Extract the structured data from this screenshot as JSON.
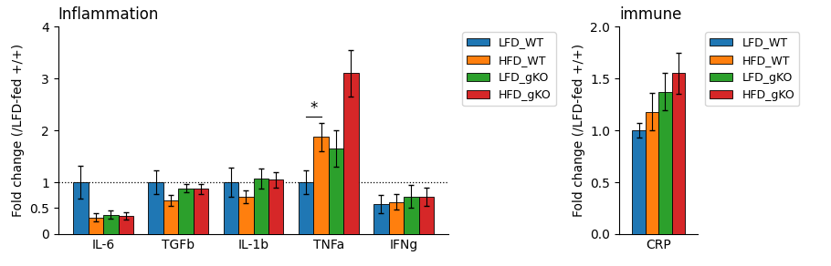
{
  "chart_data": [
    {
      "type": "bar",
      "title": "Inflammation",
      "y_label": "Fold change (/LFD-fed +/+)",
      "categories": [
        "IL-6",
        "TGFb",
        "IL-1b",
        "TNFa",
        "IFNg"
      ],
      "series": [
        {
          "name": "LFD_WT",
          "values": [
            1.0,
            1.0,
            1.0,
            1.0,
            0.58
          ],
          "errors": [
            0.32,
            0.22,
            0.28,
            0.22,
            0.18
          ]
        },
        {
          "name": "HFD_WT",
          "values": [
            0.32,
            0.65,
            0.72,
            1.87,
            0.62
          ],
          "errors": [
            0.08,
            0.1,
            0.12,
            0.28,
            0.15
          ]
        },
        {
          "name": "LFD_gKO",
          "values": [
            0.37,
            0.88,
            1.07,
            1.65,
            0.72
          ],
          "errors": [
            0.08,
            0.08,
            0.2,
            0.35,
            0.22
          ]
        },
        {
          "name": "HFD_gKO",
          "values": [
            0.35,
            0.87,
            1.05,
            3.1,
            0.72
          ],
          "errors": [
            0.07,
            0.1,
            0.15,
            0.45,
            0.18
          ]
        }
      ],
      "ylim": [
        0,
        4
      ],
      "yticks": [
        0,
        0.5,
        1,
        2,
        3,
        4
      ],
      "reference_lines": [
        {
          "y": 1.0,
          "line_style": "dotted"
        }
      ],
      "annotations": [
        {
          "text": "*",
          "category": "TNFa",
          "between": [
            "LFD_WT",
            "HFD_WT"
          ]
        }
      ],
      "legend": "upper left"
    },
    {
      "type": "bar",
      "title": "immune",
      "y_label": "Fold change (/LFD-fed +/+)",
      "categories": [
        "CRP"
      ],
      "series": [
        {
          "name": "LFD_WT",
          "values": [
            1.0
          ],
          "errors": [
            0.07
          ]
        },
        {
          "name": "HFD_WT",
          "values": [
            1.18
          ],
          "errors": [
            0.18
          ]
        },
        {
          "name": "LFD_gKO",
          "values": [
            1.37
          ],
          "errors": [
            0.18
          ]
        },
        {
          "name": "HFD_gKO",
          "values": [
            1.55
          ],
          "errors": [
            0.2
          ]
        }
      ],
      "ylim": [
        0.0,
        2.0
      ],
      "yticks": [
        0.0,
        0.5,
        1.0,
        1.5,
        2.0
      ],
      "legend": "upper left"
    }
  ]
}
